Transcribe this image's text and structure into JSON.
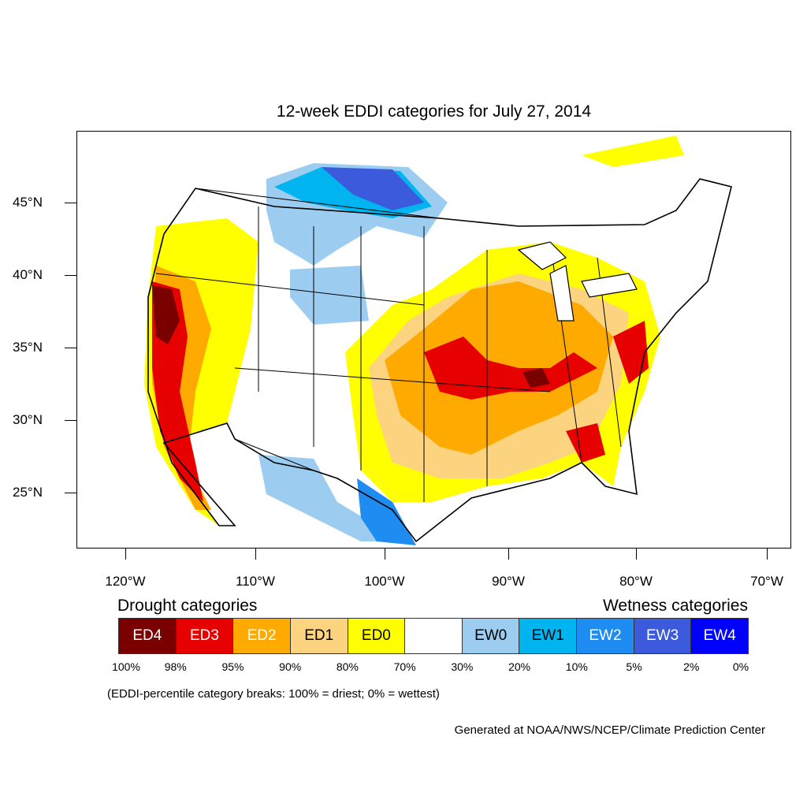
{
  "title": "12-week EDDI categories for July 27, 2014",
  "lat_labels": [
    "45°N",
    "40°N",
    "35°N",
    "30°N",
    "25°N"
  ],
  "lon_labels": [
    "120°W",
    "110°W",
    "100°W",
    "90°W",
    "80°W",
    "70°W"
  ],
  "legend": {
    "drought_heading": "Drought categories",
    "wetness_heading": "Wetness categories",
    "categories": [
      {
        "label": "ED4",
        "color": "#7a0000",
        "text_color": "#ffffff"
      },
      {
        "label": "ED3",
        "color": "#e60000",
        "text_color": "#ffffff"
      },
      {
        "label": "ED2",
        "color": "#ffaa00",
        "text_color": "#ffffff"
      },
      {
        "label": "ED1",
        "color": "#fcd37f",
        "text_color": "#000000"
      },
      {
        "label": "ED0",
        "color": "#ffff00",
        "text_color": "#000000"
      },
      {
        "label": "",
        "color": "#ffffff",
        "text_color": "#000000"
      },
      {
        "label": "EW0",
        "color": "#9ccdf0",
        "text_color": "#000000"
      },
      {
        "label": "EW1",
        "color": "#00b4f0",
        "text_color": "#000000"
      },
      {
        "label": "EW2",
        "color": "#1e8cf0",
        "text_color": "#ffffff"
      },
      {
        "label": "EW3",
        "color": "#3c5adc",
        "text_color": "#ffffff"
      },
      {
        "label": "EW4",
        "color": "#0000ff",
        "text_color": "#ffffff"
      }
    ],
    "breaks": [
      "100%",
      "98%",
      "95%",
      "90%",
      "80%",
      "70%",
      "30%",
      "20%",
      "10%",
      "5%",
      "2%",
      "0%"
    ]
  },
  "note": "(EDDI-percentile category breaks: 100% = driest; 0% = wettest)",
  "credit": "Generated at NOAA/NWS/NCEP/Climate Prediction Center"
}
